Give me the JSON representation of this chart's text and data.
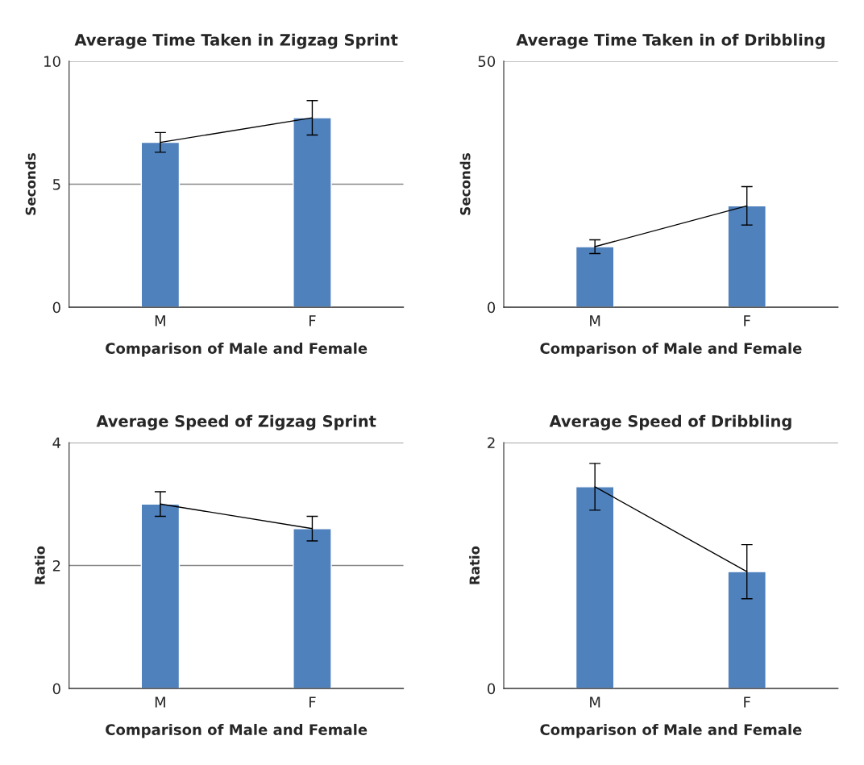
{
  "chart_data": [
    {
      "type": "bar",
      "title": "Average Time Taken in Zigzag Sprint",
      "xlabel": "Comparison of Male and Female",
      "ylabel": "Seconds",
      "categories": [
        "M",
        "F"
      ],
      "ylim": [
        0,
        10
      ],
      "yticks": [
        0,
        5,
        10
      ],
      "grid": "y",
      "legend": false,
      "series": [
        {
          "color": "#4f81bd",
          "values": [
            6.7,
            7.7
          ],
          "errors": [
            0.4,
            0.7
          ]
        },
        {
          "type": "line",
          "color": "#000000",
          "values": [
            6.7,
            7.7
          ],
          "marker": "none"
        }
      ]
    },
    {
      "type": "bar",
      "title": "Average Time Taken in of Dribbling",
      "xlabel": "Comparison of Male and Female",
      "ylabel": "Seconds",
      "categories": [
        "M",
        "F"
      ],
      "ylim": [
        0,
        50
      ],
      "yticks": [
        0,
        50
      ],
      "grid": "y",
      "legend": false,
      "series": [
        {
          "color": "#4f81bd",
          "values": [
            12.3,
            20.6
          ],
          "errors": [
            1.4,
            3.9
          ]
        },
        {
          "type": "line",
          "color": "#000000",
          "values": [
            12.3,
            20.6
          ],
          "marker": "none"
        }
      ]
    },
    {
      "type": "bar",
      "title": "Average Speed of Zigzag Sprint",
      "xlabel": "Comparison of Male and Female",
      "ylabel": "Ratio",
      "categories": [
        "M",
        "F"
      ],
      "ylim": [
        0,
        4
      ],
      "yticks": [
        0,
        2,
        4
      ],
      "grid": "y",
      "legend": false,
      "series": [
        {
          "color": "#4f81bd",
          "values": [
            3.0,
            2.6
          ],
          "errors": [
            0.2,
            0.2
          ]
        },
        {
          "type": "line",
          "color": "#000000",
          "values": [
            3.0,
            2.6
          ],
          "marker": "none"
        }
      ]
    },
    {
      "type": "bar",
      "title": "Average Speed of Dribbling",
      "xlabel": "Comparison of Male and Female",
      "ylabel": "Ratio",
      "categories": [
        "M",
        "F"
      ],
      "ylim": [
        0,
        2
      ],
      "yticks": [
        0,
        2
      ],
      "grid": "y",
      "legend": false,
      "series": [
        {
          "color": "#4f81bd",
          "values": [
            1.64,
            0.95
          ],
          "errors": [
            0.19,
            0.22
          ]
        },
        {
          "type": "line",
          "color": "#000000",
          "values": [
            1.64,
            0.95
          ],
          "marker": "none"
        }
      ]
    }
  ]
}
